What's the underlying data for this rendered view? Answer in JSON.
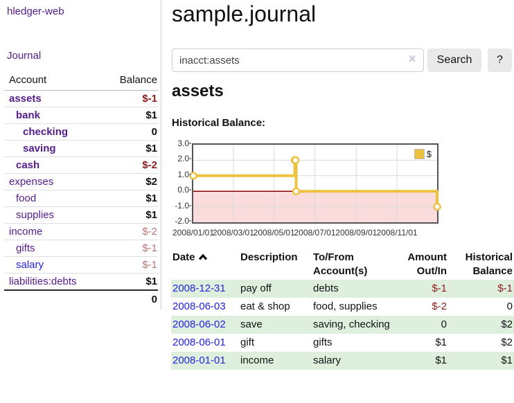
{
  "app": {
    "brand": "hledger-web",
    "nav": {
      "journal": "Journal"
    }
  },
  "sidebar": {
    "header": {
      "account": "Account",
      "balance": "Balance"
    },
    "accounts": [
      {
        "name": "assets",
        "indent": 0,
        "bold": true,
        "balance": "$-1",
        "neg": "strong"
      },
      {
        "name": "bank",
        "indent": 1,
        "bold": true,
        "balance": "$1"
      },
      {
        "name": "checking",
        "indent": 2,
        "bold": true,
        "balance": "0"
      },
      {
        "name": "saving",
        "indent": 2,
        "bold": true,
        "balance": "$1"
      },
      {
        "name": "cash",
        "indent": 1,
        "bold": true,
        "balance": "$-2",
        "neg": "strong"
      },
      {
        "name": "expenses",
        "indent": 0,
        "bold": false,
        "balance": "$2"
      },
      {
        "name": "food",
        "indent": 1,
        "bold": false,
        "balance": "$1"
      },
      {
        "name": "supplies",
        "indent": 1,
        "bold": false,
        "balance": "$1"
      },
      {
        "name": "income",
        "indent": 0,
        "bold": false,
        "balance": "$-2",
        "neg": "soft"
      },
      {
        "name": "gifts",
        "indent": 1,
        "bold": false,
        "balance": "$-1",
        "neg": "soft"
      },
      {
        "name": "salary",
        "indent": 1,
        "bold": false,
        "balance": "$-1",
        "neg": "soft",
        "blue": true
      },
      {
        "name": "liabilities:debts",
        "indent": 0,
        "bold": false,
        "balance": "$1"
      }
    ],
    "total": "0"
  },
  "main": {
    "title": "sample.journal",
    "search": {
      "value": "inacct:assets",
      "clear_icon": "×",
      "button_label": "Search",
      "help_label": "?"
    },
    "account_heading": "assets",
    "chart_label": "Historical Balance:"
  },
  "chart_data": {
    "type": "line",
    "step": true,
    "title": "Historical Balance:",
    "series": [
      {
        "name": "$",
        "color": "#EDC240",
        "points": [
          [
            "2008-01-01",
            1
          ],
          [
            "2008-06-01",
            2
          ],
          [
            "2008-06-02",
            2
          ],
          [
            "2008-06-03",
            0
          ],
          [
            "2008-12-31",
            -1
          ]
        ]
      }
    ],
    "xrange": [
      "2008-01-01",
      "2008-12-31"
    ],
    "ylim": [
      -2,
      3
    ],
    "yticks": [
      {
        "v": 3,
        "label": "3.0"
      },
      {
        "v": 2,
        "label": "2.0"
      },
      {
        "v": 1,
        "label": "1.0"
      },
      {
        "v": 0,
        "label": "0.0"
      },
      {
        "v": -1,
        "label": "-1.0"
      },
      {
        "v": -2,
        "label": "-2.0"
      }
    ],
    "xticks": [
      {
        "date": "2008-01-01",
        "label": "2008/01/01"
      },
      {
        "date": "2008-03-01",
        "label": "2008/03/01"
      },
      {
        "date": "2008-05-01",
        "label": "2008/05/01"
      },
      {
        "date": "2008-07-01",
        "label": "2008/07/01"
      },
      {
        "date": "2008-09-01",
        "label": "2008/09/01"
      },
      {
        "date": "2008-11-01",
        "label": "2008/11/01"
      }
    ],
    "grid": true,
    "zero_line_color": "#8b0000",
    "negative_region_color": "#fbdcdc",
    "legend": {
      "label": "$",
      "position": "top-right"
    }
  },
  "register": {
    "headers": [
      {
        "l1": "Date",
        "sort_asc": true
      },
      {
        "l1": "Description"
      },
      {
        "l1": "To/From",
        "l2": "Account(s)"
      },
      {
        "l1": "Amount",
        "l2": "Out/In",
        "align": "right"
      },
      {
        "l1": "Historical",
        "l2": "Balance",
        "align": "right"
      }
    ],
    "rows": [
      {
        "date": "2008-12-31",
        "description": "pay off",
        "tofrom": "debts",
        "amount": "$-1",
        "amount_neg": true,
        "balance": "$-1",
        "balance_neg": true
      },
      {
        "date": "2008-06-03",
        "description": "eat & shop",
        "tofrom": "food, supplies",
        "amount": "$-2",
        "amount_neg": true,
        "balance": "0",
        "balance_neg": false
      },
      {
        "date": "2008-06-02",
        "description": "save",
        "tofrom": "saving, checking",
        "amount": "0",
        "amount_neg": false,
        "balance": "$2",
        "balance_neg": false
      },
      {
        "date": "2008-06-01",
        "description": "gift",
        "tofrom": "gifts",
        "amount": "$1",
        "amount_neg": false,
        "balance": "$2",
        "balance_neg": false
      },
      {
        "date": "2008-01-01",
        "description": "income",
        "tofrom": "salary",
        "amount": "$1",
        "amount_neg": false,
        "balance": "$1",
        "balance_neg": false
      }
    ]
  }
}
